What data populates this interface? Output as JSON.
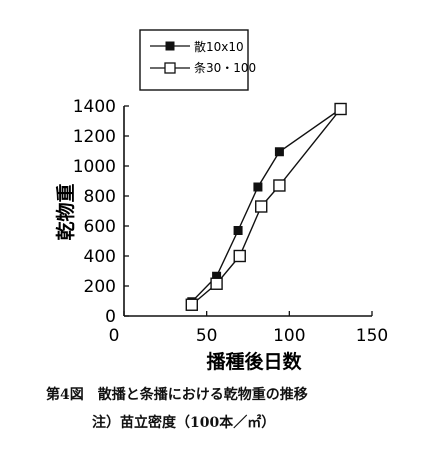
{
  "caption": {
    "line1": "第4図　散播と条播における乾物重の推移",
    "line2": "注）苗立密度（100本／㎡）"
  },
  "chart_data": {
    "type": "line",
    "xlabel": "播種後日数",
    "ylabel": "乾物重",
    "xlim": [
      0,
      150
    ],
    "ylim": [
      0,
      1400
    ],
    "xticks": [
      0,
      50,
      100,
      150
    ],
    "yticks": [
      0,
      200,
      400,
      600,
      800,
      1000,
      1200,
      1400
    ],
    "grid": false,
    "legend_position": "top-left",
    "series": [
      {
        "name": "散10x10",
        "marker": "filled-square",
        "color": "#111111",
        "x": [
          41,
          56,
          69,
          81,
          94,
          131
        ],
        "y": [
          95,
          265,
          570,
          860,
          1095,
          1380
        ]
      },
      {
        "name": "条30・100",
        "marker": "open-square",
        "color": "#111111",
        "x": [
          41,
          56,
          70,
          83,
          94,
          131
        ],
        "y": [
          75,
          215,
          400,
          730,
          870,
          1380
        ]
      }
    ]
  }
}
